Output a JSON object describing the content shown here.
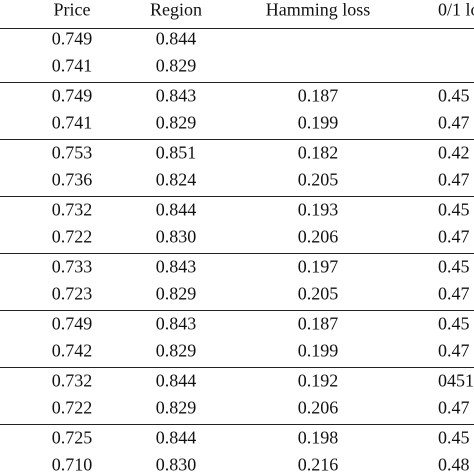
{
  "table": {
    "header": [
      "Price",
      "Region",
      "Hamming loss",
      "0/1 lo"
    ],
    "rows": [
      [
        "0.749",
        "0.844"
      ],
      [
        "0.741",
        "0.829"
      ],
      [
        "0.749",
        "0.843",
        "0.187",
        "0.45"
      ],
      [
        "0.741",
        "0.829",
        "0.199",
        "0.47"
      ],
      [
        "0.753",
        "0.851",
        "0.182",
        "0.42"
      ],
      [
        "0.736",
        "0.824",
        "0.205",
        "0.47"
      ],
      [
        "0.732",
        "0.844",
        "0.193",
        "0.45"
      ],
      [
        "0.722",
        "0.830",
        "0.206",
        "0.47"
      ],
      [
        "0.733",
        "0.843",
        "0.197",
        "0.45"
      ],
      [
        "0.723",
        "0.829",
        "0.205",
        "0.47"
      ],
      [
        "0.749",
        "0.843",
        "0.187",
        "0.45"
      ],
      [
        "0.742",
        "0.829",
        "0.199",
        "0.47"
      ],
      [
        "0.732",
        "0.844",
        "0.192",
        "0451"
      ],
      [
        "0.722",
        "0.829",
        "0.206",
        "0.47"
      ],
      [
        "0.725",
        "0.844",
        "0.198",
        "0.45"
      ],
      [
        "0.710",
        "0.830",
        "0.216",
        "0.48"
      ]
    ]
  }
}
